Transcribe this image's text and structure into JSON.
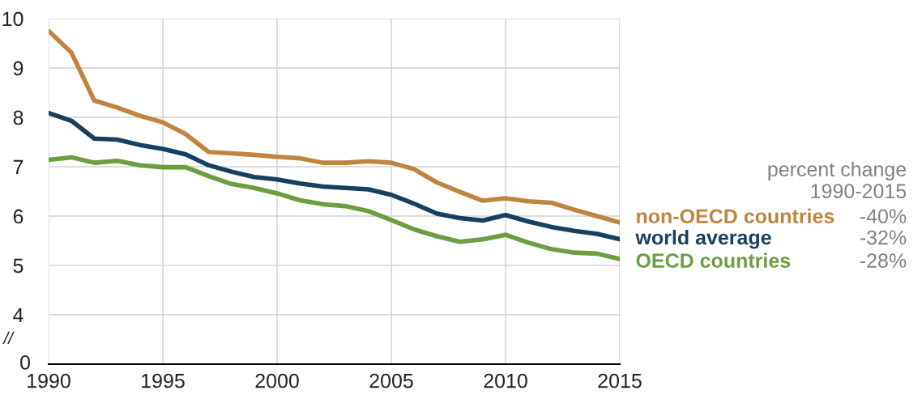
{
  "chart_data": {
    "type": "line",
    "x": [
      1990,
      1991,
      1992,
      1993,
      1994,
      1995,
      1996,
      1997,
      1998,
      1999,
      2000,
      2001,
      2002,
      2003,
      2004,
      2005,
      2006,
      2007,
      2008,
      2009,
      2010,
      2011,
      2012,
      2013,
      2014,
      2015
    ],
    "series": [
      {
        "name": "non-OECD countries",
        "color": "#c0843f",
        "values": [
          9.75,
          9.31,
          8.34,
          8.2,
          8.03,
          7.9,
          7.66,
          7.3,
          7.27,
          7.24,
          7.2,
          7.17,
          7.08,
          7.08,
          7.11,
          7.08,
          6.95,
          6.68,
          6.49,
          6.31,
          6.36,
          6.3,
          6.27,
          6.13,
          6.0,
          5.87
        ]
      },
      {
        "name": "world average",
        "color": "#173f5f",
        "values": [
          8.09,
          7.93,
          7.57,
          7.55,
          7.44,
          7.36,
          7.25,
          7.03,
          6.9,
          6.79,
          6.74,
          6.66,
          6.6,
          6.57,
          6.54,
          6.43,
          6.25,
          6.05,
          5.96,
          5.91,
          6.02,
          5.89,
          5.78,
          5.7,
          5.64,
          5.53
        ]
      },
      {
        "name": "OECD countries",
        "color": "#6a9e3f",
        "values": [
          7.14,
          7.19,
          7.08,
          7.12,
          7.03,
          6.99,
          6.99,
          6.81,
          6.65,
          6.57,
          6.46,
          6.32,
          6.24,
          6.2,
          6.1,
          5.92,
          5.73,
          5.59,
          5.48,
          5.53,
          5.62,
          5.46,
          5.33,
          5.26,
          5.24,
          5.13
        ]
      }
    ],
    "xlim": [
      1990,
      2015
    ],
    "xticks": [
      1990,
      1995,
      2000,
      2005,
      2010,
      2015
    ],
    "ylim": [
      3,
      10
    ],
    "yticks": [
      4,
      5,
      6,
      7,
      8,
      9,
      10
    ],
    "grid": true,
    "legend": false,
    "marker": "none",
    "line_style": "solid",
    "annotations": [
      "percent change\n1990-2015",
      "-40%",
      "-32%",
      "-28%",
      "//",
      "0"
    ]
  }
}
